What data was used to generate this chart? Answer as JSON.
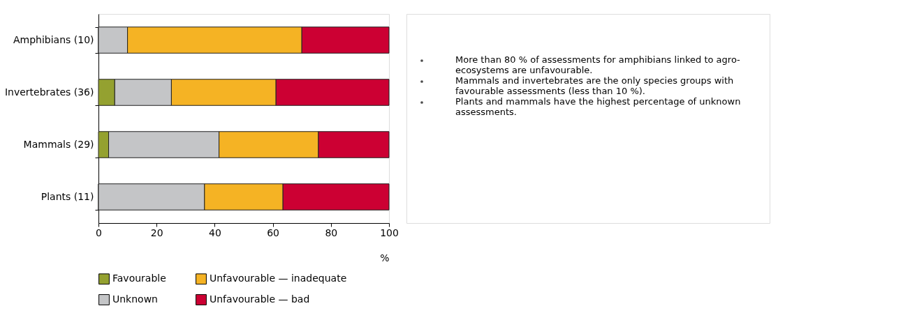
{
  "chart_data": {
    "type": "bar",
    "orientation": "horizontal",
    "stacked": true,
    "categories": [
      "Amphibians (10)",
      "Invertebrates (36)",
      "Mammals (29)",
      "Plants (11)"
    ],
    "series": [
      {
        "name": "Favourable",
        "color": "#94a130",
        "values": [
          0,
          5.6,
          3.5,
          0
        ]
      },
      {
        "name": "Unknown",
        "color": "#c4c5c7",
        "values": [
          10,
          19.5,
          38,
          36.5
        ]
      },
      {
        "name": "Unfavourable — inadequate",
        "color": "#f5b324",
        "values": [
          60,
          36,
          34.2,
          27
        ]
      },
      {
        "name": "Unfavourable — bad",
        "color": "#cc0033",
        "values": [
          30,
          38.9,
          24.3,
          36.5
        ]
      }
    ],
    "xlabel": "%",
    "xlim": [
      0,
      100
    ],
    "xticks": [
      0,
      20,
      40,
      60,
      80,
      100
    ],
    "grid": false,
    "legend": "bottom",
    "annotations": [
      "More than 80 % of assessments for amphibians linked to agro-ecosystems are unfavourable.",
      "Mammals and invertebrates are the only species groups with favourable assessments (less than 10 %).",
      "Plants and mammals have the highest percentage of unknown assessments."
    ]
  }
}
